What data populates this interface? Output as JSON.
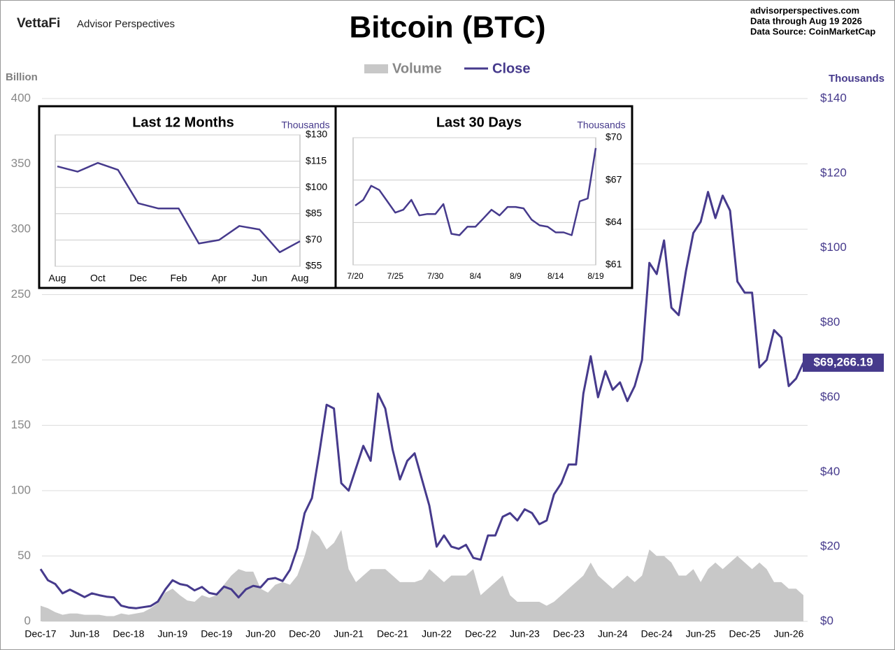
{
  "header": {
    "logo": "VettaFi",
    "brand": "Advisor Perspectives",
    "site": "advisorperspectives.com",
    "data_through": "Data through Aug 19 2026",
    "source": "Data Source: CoinMarketCap"
  },
  "chart_data": [
    {
      "type": "line",
      "title": "Bitcoin (BTC)",
      "ylabel": "Billion",
      "y2label": "Thousands",
      "categories": [
        "Dec-17",
        null,
        null,
        null,
        null,
        null,
        "Jun-18",
        null,
        null,
        null,
        null,
        null,
        "Dec-18",
        null,
        null,
        null,
        null,
        null,
        "Jun-19",
        null,
        null,
        null,
        null,
        null,
        "Dec-19",
        null,
        null,
        null,
        null,
        null,
        "Jun-20",
        null,
        null,
        null,
        null,
        null,
        "Dec-20",
        null,
        null,
        null,
        null,
        null,
        "Jun-21",
        null,
        null,
        null,
        null,
        null,
        "Dec-21",
        null,
        null,
        null,
        null,
        null,
        "Jun-22",
        null,
        null,
        null,
        null,
        null,
        "Dec-22",
        null,
        null,
        null,
        null,
        null,
        "Jun-23",
        null,
        null,
        null,
        null,
        null,
        "Dec-23",
        null,
        null,
        null,
        null,
        null,
        "Jun-24",
        null,
        null,
        null,
        null,
        null,
        "Dec-24",
        null,
        null,
        null,
        null,
        null,
        "Jun-25",
        null,
        null,
        null,
        null,
        null,
        "Dec-25",
        null,
        null,
        null,
        null,
        null,
        "Jun-26",
        null,
        null
      ],
      "series": [
        {
          "name": "Volume",
          "color": "#c8c8c8",
          "style": "area",
          "values": [
            12,
            10,
            7,
            5,
            6,
            6,
            5,
            5,
            5,
            4,
            4,
            6,
            5,
            6,
            7,
            10,
            14,
            22,
            25,
            20,
            16,
            15,
            20,
            18,
            20,
            28,
            35,
            40,
            38,
            38,
            25,
            22,
            28,
            30,
            28,
            35,
            50,
            70,
            65,
            55,
            60,
            70,
            40,
            30,
            35,
            40,
            40,
            40,
            35,
            30,
            30,
            30,
            32,
            40,
            35,
            30,
            35,
            35,
            35,
            40,
            20,
            25,
            30,
            35,
            20,
            15,
            15,
            15,
            15,
            12,
            15,
            20,
            25,
            30,
            35,
            45,
            35,
            30,
            25,
            30,
            35,
            30,
            35,
            55,
            50,
            50,
            45,
            35,
            35,
            40,
            30,
            40,
            45,
            40,
            45,
            50,
            45,
            40,
            45,
            40,
            30,
            30,
            25,
            25,
            20
          ]
        },
        {
          "name": "Close",
          "color": "#463a8c",
          "axis": "y2",
          "values": [
            14,
            11,
            10,
            7.5,
            8.5,
            7.5,
            6.5,
            7.5,
            7,
            6.6,
            6.4,
            4.2,
            3.7,
            3.5,
            3.8,
            4.1,
            5.3,
            8.5,
            11,
            10,
            9.6,
            8.3,
            9.2,
            7.6,
            7.2,
            9.3,
            8.6,
            6.4,
            8.6,
            9.5,
            9.1,
            11.3,
            11.6,
            10.8,
            13.8,
            19.6,
            29,
            33,
            45,
            58,
            57,
            37,
            35,
            41,
            47,
            43,
            61,
            57,
            46,
            38,
            43,
            45,
            38,
            31,
            20,
            23,
            20,
            19.4,
            20.5,
            17,
            16.5,
            23,
            23,
            28,
            29,
            27,
            30,
            29,
            26,
            27,
            34,
            37,
            42,
            42,
            61,
            71,
            60,
            67,
            62,
            64,
            59,
            63,
            70,
            96,
            93,
            102,
            84,
            82,
            94,
            104,
            107,
            115,
            108,
            114,
            110,
            91,
            88,
            88,
            68,
            70,
            78,
            76,
            63,
            65,
            69.26619
          ],
          "value_labels": [
            null,
            null,
            null,
            null,
            null,
            null,
            null,
            null,
            null,
            null,
            null,
            null,
            null,
            null,
            null,
            null,
            null,
            null,
            null,
            null,
            null,
            null,
            null,
            null,
            null,
            null,
            null,
            null,
            null,
            null,
            null,
            null,
            null,
            null,
            null,
            null,
            null,
            null,
            null,
            null,
            null,
            null,
            null,
            null,
            null,
            null,
            null,
            null,
            null,
            null,
            null,
            null,
            null,
            null,
            null,
            null,
            null,
            null,
            null,
            null,
            null,
            null,
            null,
            null,
            null,
            null,
            null,
            null,
            null,
            null,
            null,
            null,
            null,
            null,
            null,
            null,
            null,
            null,
            null,
            null,
            null,
            null,
            null,
            null,
            null,
            null,
            null,
            null,
            null,
            null,
            null,
            null,
            null,
            null,
            null,
            null,
            null,
            null,
            null,
            null,
            null,
            null,
            null,
            null,
            "$69,266.19"
          ]
        }
      ],
      "ylim": [
        0,
        400
      ],
      "yticks": [
        0,
        50,
        100,
        150,
        200,
        250,
        300,
        350,
        400
      ],
      "y2lim": [
        0,
        140
      ],
      "y2ticks": [
        {
          "value": 0,
          "label": "$0"
        },
        {
          "value": 20,
          "label": "$20"
        },
        {
          "value": 40,
          "label": "$40"
        },
        {
          "value": 60,
          "label": "$60"
        },
        {
          "value": 80,
          "label": "$80"
        },
        {
          "value": 100,
          "label": "$100"
        },
        {
          "value": 120,
          "label": "$120"
        },
        {
          "value": 140,
          "label": "$140"
        }
      ],
      "grid": true,
      "legend": "top"
    },
    {
      "type": "line",
      "title": "Last 12 Months",
      "ylabel": "Thousands",
      "color": "#463a8c",
      "categories": [
        "Aug",
        null,
        "Oct",
        null,
        "Dec",
        null,
        "Feb",
        null,
        "Apr",
        null,
        "Jun",
        null,
        "Aug"
      ],
      "values": [
        112,
        109,
        114,
        110,
        91,
        88,
        88,
        68,
        70,
        78,
        76,
        63,
        69.26619
      ],
      "ylim": [
        55,
        130
      ],
      "yticks": [
        {
          "value": 55,
          "label": "$55"
        },
        {
          "value": 70,
          "label": "$70"
        },
        {
          "value": 85,
          "label": "$85"
        },
        {
          "value": 100,
          "label": "$100"
        },
        {
          "value": 115,
          "label": "$115"
        },
        {
          "value": 130,
          "label": "$130"
        }
      ],
      "grid": true
    },
    {
      "type": "line",
      "title": "Last 30 Days",
      "ylabel": "Thousands",
      "color": "#463a8c",
      "categories": [
        "7/20",
        null,
        null,
        null,
        null,
        "7/25",
        null,
        null,
        null,
        null,
        "7/30",
        null,
        null,
        null,
        null,
        "8/4",
        null,
        null,
        null,
        null,
        "8/9",
        null,
        null,
        null,
        null,
        "8/14",
        null,
        null,
        null,
        null,
        "8/19"
      ],
      "values": [
        65.2,
        65.6,
        66.6,
        66.3,
        65.5,
        64.7,
        64.9,
        65.6,
        64.5,
        64.6,
        64.6,
        65.3,
        63.2,
        63.1,
        63.7,
        63.7,
        64.3,
        64.9,
        64.5,
        65.1,
        65.1,
        65.0,
        64.2,
        63.8,
        63.7,
        63.3,
        63.3,
        63.1,
        65.5,
        65.7,
        69.26619
      ],
      "ylim": [
        61,
        70
      ],
      "yticks": [
        {
          "value": 61,
          "label": "$61"
        },
        {
          "value": 64,
          "label": "$64"
        },
        {
          "value": 67,
          "label": "$67"
        },
        {
          "value": 70,
          "label": "$70"
        }
      ],
      "grid": true
    }
  ]
}
